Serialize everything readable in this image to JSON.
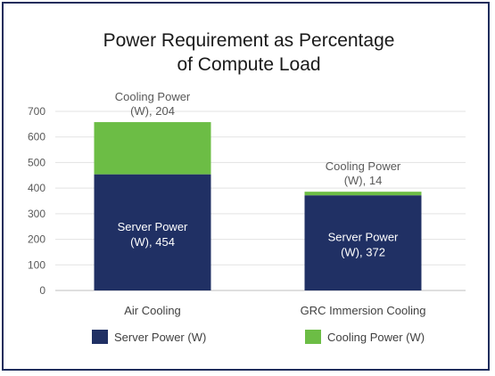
{
  "chart_data": {
    "type": "bar",
    "stacked": true,
    "title_lines": [
      "Power Requirement as Percentage",
      "of Compute Load"
    ],
    "categories": [
      "Air Cooling",
      "GRC Immersion Cooling"
    ],
    "series": [
      {
        "name": "Server Power (W)",
        "color": "#203064",
        "values": [
          454,
          372
        ],
        "data_labels": [
          [
            "Server Power",
            "(W), 454"
          ],
          [
            "Server Power",
            "(W), 372"
          ]
        ]
      },
      {
        "name": "Cooling Power (W)",
        "color": "#6cbd45",
        "values": [
          204,
          14
        ],
        "data_labels": [
          [
            "Cooling Power",
            "(W), 204"
          ],
          [
            "Cooling Power",
            "(W), 14"
          ]
        ]
      }
    ],
    "yticks": [
      0,
      100,
      200,
      300,
      400,
      500,
      600,
      700
    ],
    "ylim": [
      0,
      700
    ],
    "grid": true,
    "legend_position": "bottom"
  }
}
